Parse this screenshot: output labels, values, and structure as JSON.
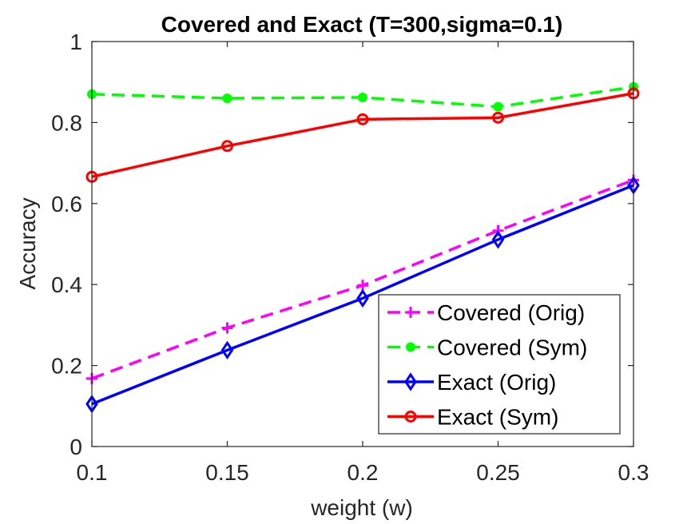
{
  "chart_data": {
    "type": "line",
    "title": "Covered and Exact (T=300,sigma=0.1)",
    "xlabel": "weight (w)",
    "ylabel": "Accuracy",
    "xlim": [
      0.1,
      0.3
    ],
    "ylim": [
      0,
      1
    ],
    "xticks": [
      "0.1",
      "0.15",
      "0.2",
      "0.25",
      "0.3"
    ],
    "yticks": [
      "0",
      "0.2",
      "0.4",
      "0.6",
      "0.8",
      "1"
    ],
    "x": [
      0.1,
      0.15,
      0.2,
      0.25,
      0.3
    ],
    "legend_position": "bottom-right",
    "series": [
      {
        "name": "Covered (Orig)",
        "color": "#ff00ff",
        "dash": "dashed",
        "marker": "plus",
        "values": [
          0.168,
          0.293,
          0.398,
          0.533,
          0.658
        ]
      },
      {
        "name": "Covered (Sym)",
        "color": "#00ff00",
        "dash": "dashed",
        "marker": "dot",
        "values": [
          0.87,
          0.86,
          0.862,
          0.839,
          0.888
        ]
      },
      {
        "name": "Exact (Orig)",
        "color": "#0000ff",
        "dash": "solid",
        "marker": "diamond",
        "values": [
          0.105,
          0.238,
          0.366,
          0.511,
          0.645
        ]
      },
      {
        "name": "Exact (Sym)",
        "color": "#ff0000",
        "dash": "solid",
        "marker": "circle",
        "values": [
          0.666,
          0.742,
          0.808,
          0.812,
          0.872
        ]
      }
    ]
  }
}
